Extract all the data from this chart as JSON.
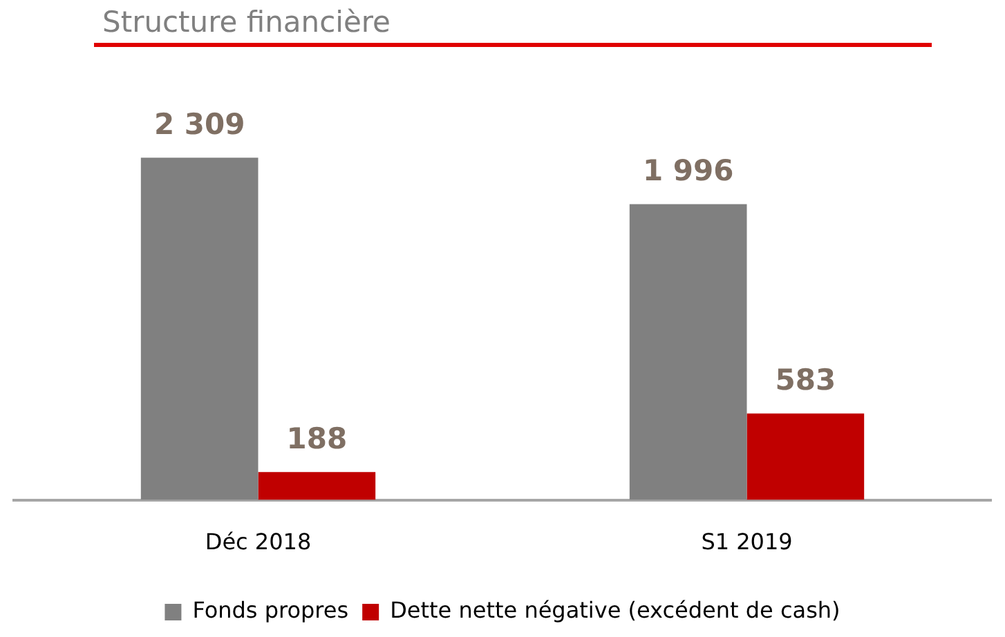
{
  "chart_data": {
    "type": "bar",
    "title": "Structure financière",
    "categories": [
      "Déc 2018",
      "S1 2019"
    ],
    "series": [
      {
        "name": "Fonds propres",
        "color": "#808080",
        "values": [
          2309,
          1996
        ],
        "value_labels": [
          "2 309",
          "1 996"
        ]
      },
      {
        "name": "Dette nette négative (excédent de cash)",
        "color": "#c00000",
        "values": [
          188,
          583
        ],
        "value_labels": [
          "188",
          "583"
        ]
      }
    ],
    "grid": false,
    "legend": "bottom",
    "tick_labels": "x"
  }
}
